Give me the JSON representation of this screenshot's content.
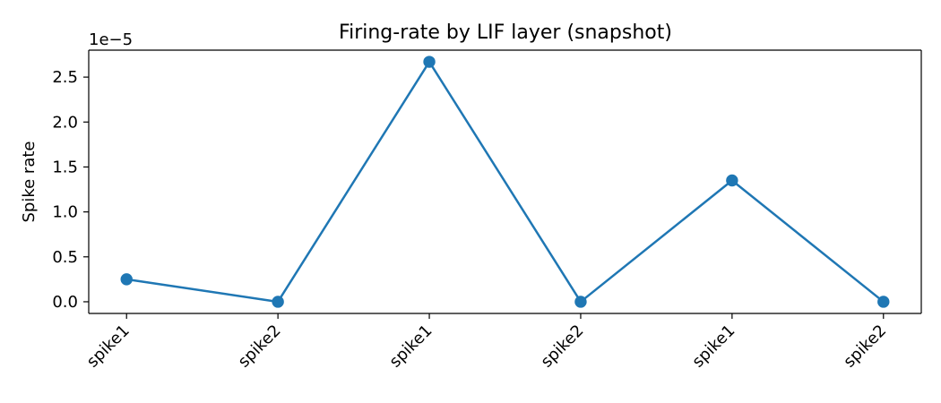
{
  "chart_data": {
    "type": "line",
    "title": "Firing-rate by LIF layer (snapshot)",
    "xlabel": "",
    "ylabel": "Spike rate",
    "y_offset_label": "1e−5",
    "categories": [
      "spike1",
      "spike2",
      "spike1",
      "spike2",
      "spike1",
      "spike2"
    ],
    "series": [
      {
        "values": [
          2.5e-06,
          0.0,
          2.67e-05,
          0.0,
          1.35e-05,
          0.0
        ],
        "color": "#1f77b4"
      }
    ],
    "y_ticks": [
      0.0,
      0.5,
      1.0,
      1.5,
      2.0,
      2.5
    ],
    "y_tick_labels": [
      "0.0",
      "0.5",
      "1.0",
      "1.5",
      "2.0",
      "2.5"
    ],
    "y_tick_scale": 1e-05,
    "ylim": [
      -1.3e-06,
      2.8e-05
    ],
    "grid": false,
    "legend": "none",
    "x_tick_rotation": "45-degrees"
  }
}
